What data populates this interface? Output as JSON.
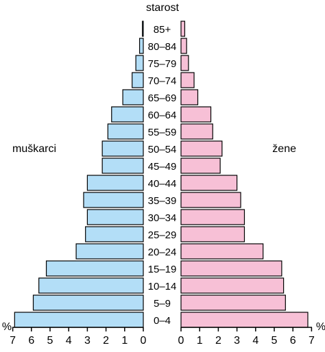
{
  "chart_data": {
    "type": "bar",
    "title": "starost",
    "left_label": "muškarci",
    "right_label": "žene",
    "axis_unit": "%",
    "categories": [
      "0–4",
      "5–9",
      "10–14",
      "15–19",
      "20–24",
      "25–29",
      "30–34",
      "35–39",
      "40–44",
      "45–49",
      "50–54",
      "55–59",
      "60–64",
      "65–69",
      "70–74",
      "75–79",
      "80–84",
      "85+"
    ],
    "series": [
      {
        "name": "muškarci",
        "color": "#b3def7",
        "values": [
          6.9,
          5.9,
          5.6,
          5.2,
          3.6,
          3.1,
          3.0,
          3.2,
          3.0,
          2.2,
          2.2,
          1.9,
          1.7,
          1.1,
          0.6,
          0.4,
          0.2,
          0.05
        ]
      },
      {
        "name": "žene",
        "color": "#f7c0d6",
        "values": [
          6.8,
          5.6,
          5.5,
          5.4,
          4.4,
          3.4,
          3.4,
          3.2,
          3.0,
          2.1,
          2.2,
          1.7,
          1.6,
          0.9,
          0.7,
          0.4,
          0.3,
          0.2
        ]
      }
    ],
    "x_ticks": [
      7,
      6,
      5,
      4,
      3,
      2,
      1,
      0
    ],
    "xlim": [
      0,
      7
    ]
  }
}
